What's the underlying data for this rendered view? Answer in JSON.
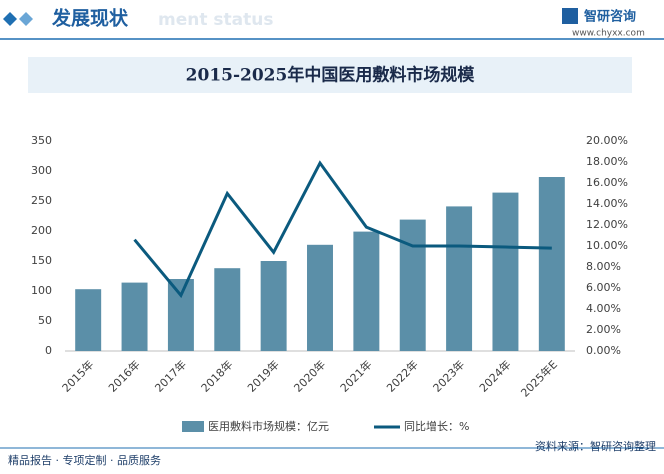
{
  "header": {
    "title": "发展现状",
    "subtitle": "ment status",
    "logo": "智研咨询",
    "url": "www.chyxx.com"
  },
  "footer": {
    "left": "精品报告 · 专项定制 · 品质服务",
    "right": "资料来源：智研咨询整理"
  },
  "chart_data": {
    "type": "combo",
    "title": "2015-2025年中国医用敷料市场规模",
    "categories": [
      "2015年",
      "2016年",
      "2017年",
      "2018年",
      "2019年",
      "2020年",
      "2021年",
      "2022年",
      "2023年",
      "2024年",
      "2025年E"
    ],
    "series": [
      {
        "name": "医用敷料市场规模：亿元",
        "type": "bar",
        "color": "#5b8fa8",
        "values": [
          103,
          114,
          120,
          138,
          150,
          177,
          199,
          219,
          241,
          264,
          290
        ]
      },
      {
        "name": "同比增长：%",
        "type": "line",
        "axis": "y2",
        "color": "#0b5a7e",
        "values": [
          null,
          10.6,
          5.3,
          15.0,
          9.4,
          17.9,
          11.8,
          10.0,
          10.0,
          9.9,
          9.8
        ]
      }
    ],
    "ylim": [
      0,
      350
    ],
    "yticks": [
      0,
      50,
      100,
      150,
      200,
      250,
      300,
      350
    ],
    "y2lim": [
      0,
      20
    ],
    "y2ticks": [
      {
        "value": 0,
        "label": "0.00%"
      },
      {
        "value": 2,
        "label": "2.00%"
      },
      {
        "value": 4,
        "label": "4.00%"
      },
      {
        "value": 6,
        "label": "6.00%"
      },
      {
        "value": 8,
        "label": "8.00%"
      },
      {
        "value": 10,
        "label": "10.00%"
      },
      {
        "value": 12,
        "label": "12.00%"
      },
      {
        "value": 14,
        "label": "14.00%"
      },
      {
        "value": 16,
        "label": "16.00%"
      },
      {
        "value": 18,
        "label": "18.00%"
      },
      {
        "value": 20,
        "label": "20.00%"
      }
    ],
    "grid": false
  }
}
